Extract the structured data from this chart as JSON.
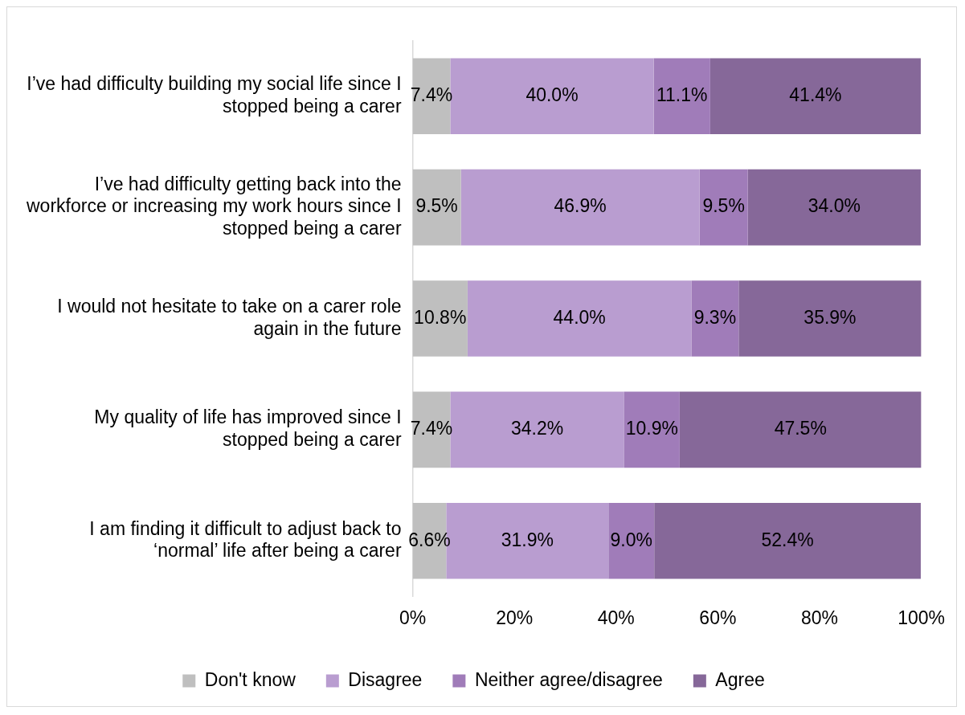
{
  "chart_data": {
    "type": "bar",
    "orientation": "horizontal",
    "stacked": true,
    "categories": [
      "I’ve had difficulty building my social life since I stopped being a carer",
      "I’ve had difficulty getting back into the workforce or increasing my work hours since I stopped being a carer",
      "I would not hesitate to take on a carer role again in the future",
      "My quality of life has improved since I stopped being a carer",
      "I am finding it difficult to adjust back to ‘normal’ life after being a carer"
    ],
    "series": [
      {
        "name": "Don't know",
        "color": "#bfbfbf",
        "values": [
          7.4,
          9.5,
          10.8,
          7.4,
          6.6
        ],
        "value_labels": [
          "7.4%",
          "9.5%",
          "10.8%",
          "7.4%",
          "6.6%"
        ]
      },
      {
        "name": "Disagree",
        "color": "#b99dd0",
        "values": [
          40.0,
          46.9,
          44.0,
          34.2,
          31.9
        ],
        "value_labels": [
          "40.0%",
          "46.9%",
          "44.0%",
          "34.2%",
          "31.9%"
        ]
      },
      {
        "name": "Neither agree/disagree",
        "color": "#a07cb9",
        "values": [
          11.1,
          9.5,
          9.3,
          10.9,
          9.0
        ],
        "value_labels": [
          "11.1%",
          "9.5%",
          "9.3%",
          "10.9%",
          "9.0%"
        ]
      },
      {
        "name": "Agree",
        "color": "#866899",
        "values": [
          41.4,
          34.0,
          35.9,
          47.5,
          52.4
        ],
        "value_labels": [
          "41.4%",
          "34.0%",
          "35.9%",
          "47.5%",
          "52.4%"
        ]
      }
    ],
    "xlim": [
      0,
      100
    ],
    "xticks": [
      {
        "value": 0,
        "label": "0%"
      },
      {
        "value": 20,
        "label": "20%"
      },
      {
        "value": 40,
        "label": "40%"
      },
      {
        "value": 60,
        "label": "60%"
      },
      {
        "value": 80,
        "label": "80%"
      },
      {
        "value": 100,
        "label": "100%"
      }
    ],
    "grid": false,
    "legend": "bottom"
  }
}
